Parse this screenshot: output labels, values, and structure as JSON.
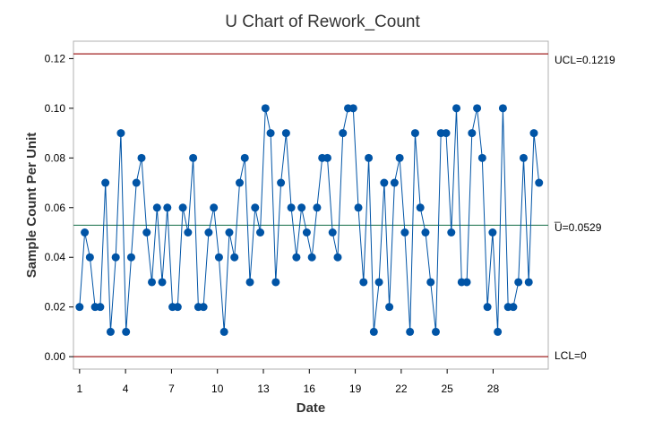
{
  "chart_data": {
    "type": "line",
    "title": "U Chart of Rework_Count",
    "xlabel": "Date",
    "ylabel": "Sample Count Per Unit",
    "x_tick_labels": [
      "1",
      "4",
      "7",
      "10",
      "13",
      "16",
      "19",
      "22",
      "25",
      "28"
    ],
    "x_tick_values": [
      1,
      4,
      7,
      10,
      13,
      16,
      19,
      22,
      25,
      28
    ],
    "xlim": [
      0.6,
      31.6
    ],
    "ylim": [
      -0.005,
      0.127
    ],
    "y_ticks": [
      0.0,
      0.02,
      0.04,
      0.06,
      0.08,
      0.1,
      0.12
    ],
    "y_tick_labels": [
      "0.00",
      "0.02",
      "0.04",
      "0.06",
      "0.08",
      "0.10",
      "0.12"
    ],
    "grid": false,
    "series": [
      {
        "values": [
          0.02,
          0.05,
          0.04,
          0.02,
          0.02,
          0.07,
          0.01,
          0.04,
          0.09,
          0.01,
          0.04,
          0.07,
          0.08,
          0.05,
          0.03,
          0.06,
          0.03,
          0.06,
          0.02,
          0.02,
          0.06,
          0.05,
          0.08,
          0.02,
          0.02,
          0.05,
          0.06,
          0.04,
          0.01,
          0.05,
          0.04,
          0.07,
          0.08,
          0.03,
          0.06,
          0.05,
          0.1,
          0.09,
          0.03,
          0.07,
          0.09,
          0.06,
          0.04,
          0.06,
          0.05,
          0.04,
          0.06,
          0.08,
          0.08,
          0.05,
          0.04,
          0.09,
          0.1,
          0.1,
          0.06,
          0.03,
          0.08,
          0.01,
          0.03,
          0.07,
          0.02,
          0.07,
          0.08,
          0.05,
          0.01,
          0.09,
          0.06,
          0.05,
          0.03,
          0.01,
          0.09,
          0.09,
          0.05,
          0.1,
          0.03,
          0.03,
          0.09,
          0.1,
          0.08,
          0.02,
          0.05,
          0.01,
          0.1,
          0.02,
          0.02,
          0.03,
          0.08,
          0.03,
          0.09,
          0.07
        ]
      }
    ],
    "control_limits": {
      "ucl": {
        "value": 0.1219,
        "label": "UCL=0.1219"
      },
      "center": {
        "value": 0.0529,
        "label": "U=0.0529",
        "bar": "_"
      },
      "lcl": {
        "value": 0,
        "label": "LCL=0"
      }
    },
    "colors": {
      "series": "#0054a6",
      "limit_lines": "#a02020",
      "center_line": "#2e7d5b",
      "frame": "#b0b0b0"
    }
  }
}
